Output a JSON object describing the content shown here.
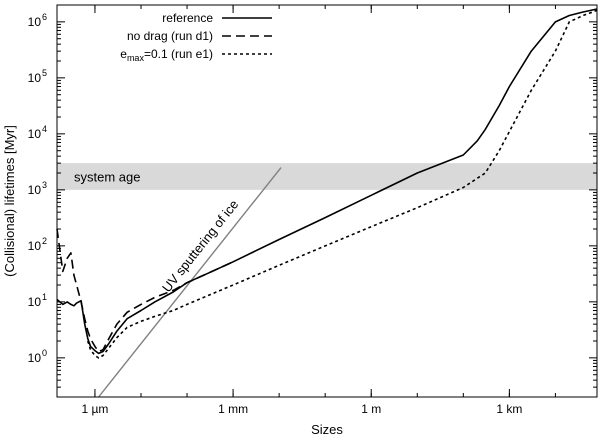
{
  "chart_data": {
    "type": "line",
    "title": "",
    "xlabel": "Sizes",
    "ylabel": "(Collisional) lifetimes [Myr]",
    "x_scale": "log",
    "y_scale": "log",
    "x_unit": "m",
    "xlim": [
      1.5e-07,
      80000.0
    ],
    "ylim": [
      0.2,
      2000000
    ],
    "x_ticks": [
      {
        "value": 1e-06,
        "label": "1 µm"
      },
      {
        "value": 0.001,
        "label": "1 mm"
      },
      {
        "value": 1,
        "label": "1 m"
      },
      {
        "value": 1000,
        "label": "1 km"
      }
    ],
    "y_ticks": [
      {
        "value": 1,
        "label": "10",
        "exp": "0"
      },
      {
        "value": 10,
        "label": "10",
        "exp": "1"
      },
      {
        "value": 100,
        "label": "10",
        "exp": "2"
      },
      {
        "value": 1000,
        "label": "10",
        "exp": "3"
      },
      {
        "value": 10000,
        "label": "10",
        "exp": "4"
      },
      {
        "value": 100000,
        "label": "10",
        "exp": "5"
      },
      {
        "value": 1000000,
        "label": "10",
        "exp": "6"
      }
    ],
    "legend": {
      "position": "top-center",
      "entries": [
        {
          "label": "reference",
          "color": "#000000",
          "dash": "solid"
        },
        {
          "label": "no drag (run d1)",
          "color": "#000000",
          "dash": "dashed"
        },
        {
          "label_prefix": "e",
          "label_sub": "max",
          "label_suffix": "=0.1 (run e1)",
          "color": "#000000",
          "dash": "dotted"
        }
      ]
    },
    "band": {
      "label": "system age",
      "ymin": 1000,
      "ymax": 3000,
      "color": "#d9d9d9"
    },
    "annotation": {
      "label": "UV sputtering of ice",
      "color": "#808080",
      "x": [
        1.2e-06,
        0.011
      ],
      "y": [
        0.2,
        2500
      ]
    },
    "series": [
      {
        "name": "reference",
        "color": "#000000",
        "dash": "solid",
        "x": [
          1.5e-07,
          2e-07,
          2.5e-07,
          3e-07,
          3.5e-07,
          4e-07,
          5e-07,
          6e-07,
          7e-07,
          8e-07,
          1e-06,
          1.2e-06,
          1.5e-06,
          2e-06,
          3e-06,
          5e-06,
          1e-05,
          2e-05,
          5e-05,
          0.0001,
          0.0003,
          0.001,
          0.01,
          0.1,
          1,
          10,
          100,
          200,
          300,
          400,
          600,
          1000,
          3000,
          10000,
          20000,
          40000,
          80000
        ],
        "y": [
          11,
          9,
          10,
          9,
          8.5,
          9.5,
          10.5,
          4,
          2.2,
          1.6,
          1.35,
          1.2,
          1.3,
          1.8,
          3,
          5,
          7,
          10,
          15,
          22,
          33,
          52,
          130,
          320,
          800,
          2000,
          4200,
          7500,
          12000,
          18000,
          32000,
          70000,
          300000,
          1000000,
          1300000,
          1500000,
          1700000
        ]
      },
      {
        "name": "no drag (run d1)",
        "color": "#000000",
        "dash": "dashed",
        "x": [
          1.5e-07,
          2e-07,
          2.5e-07,
          3e-07,
          3.5e-07,
          4e-07,
          5e-07,
          6e-07,
          7e-07,
          8e-07,
          1e-06,
          1.2e-06,
          1.5e-06,
          2e-06,
          3e-06,
          5e-06,
          1e-05,
          2e-05,
          5e-05,
          0.0001,
          0.0003,
          0.001
        ],
        "y": [
          200,
          35,
          60,
          75,
          30,
          20,
          10,
          5,
          3,
          2.2,
          1.6,
          1.3,
          1.4,
          2.2,
          4,
          6.5,
          9,
          12,
          16,
          22,
          33,
          52
        ]
      },
      {
        "name": "e_max=0.1 (run e1)",
        "color": "#000000",
        "dash": "dotted",
        "x": [
          7e-07,
          8e-07,
          1e-06,
          1.2e-06,
          1.5e-06,
          2e-06,
          3e-06,
          5e-06,
          1e-05,
          2e-05,
          5e-05,
          0.0001,
          0.001,
          0.01,
          0.1,
          1,
          10,
          100,
          300,
          600,
          1000,
          3000,
          10000,
          20000,
          40000,
          80000
        ],
        "y": [
          2,
          1.4,
          1.1,
          1.0,
          1.1,
          1.5,
          2.3,
          3.5,
          4.5,
          5.5,
          7,
          9,
          20,
          45,
          100,
          220,
          480,
          1100,
          2000,
          5000,
          11000,
          60000,
          300000,
          1000000,
          1300000,
          1600000
        ]
      }
    ],
    "grid": false
  }
}
